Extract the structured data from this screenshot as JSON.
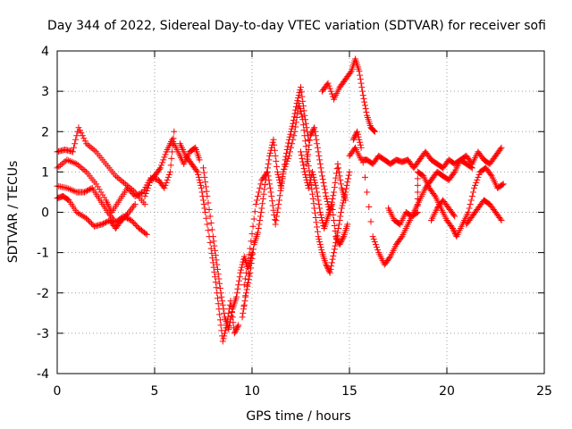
{
  "chart_data": {
    "type": "scatter",
    "title": "Day 344 of 2022, Sidereal Day-to-day VTEC variation (SDTVAR) for receiver sofi",
    "xlabel": "GPS time / hours",
    "ylabel": "SDTVAR / TECUs",
    "xlim": [
      0,
      25
    ],
    "ylim": [
      -4,
      4
    ],
    "xticks": [
      0,
      5,
      10,
      15,
      20,
      25
    ],
    "yticks": [
      -4,
      -3,
      -2,
      -1,
      0,
      1,
      2,
      3,
      4
    ],
    "grid": true,
    "marker": "+",
    "color": "#ff0000",
    "series": [
      {
        "points": [
          [
            0.0,
            1.5
          ],
          [
            0.4,
            1.55
          ],
          [
            0.8,
            1.5
          ],
          [
            1.1,
            2.1
          ],
          [
            1.5,
            1.7
          ],
          [
            2.0,
            1.5
          ],
          [
            2.5,
            1.2
          ],
          [
            3.0,
            0.9
          ],
          [
            3.5,
            0.7
          ],
          [
            4.0,
            0.5
          ],
          [
            4.5,
            0.2
          ],
          [
            0.0,
            0.65
          ],
          [
            0.5,
            0.6
          ],
          [
            1.0,
            0.5
          ],
          [
            1.4,
            0.5
          ],
          [
            1.8,
            0.6
          ],
          [
            2.2,
            0.3
          ],
          [
            2.6,
            0.0
          ],
          [
            3.0,
            -0.25
          ],
          [
            3.4,
            -0.1
          ],
          [
            3.8,
            -0.2
          ],
          [
            4.2,
            -0.4
          ],
          [
            4.6,
            -0.55
          ],
          [
            0.0,
            0.35
          ],
          [
            0.3,
            0.4
          ],
          [
            0.6,
            0.3
          ],
          [
            1.0,
            0.0
          ],
          [
            1.5,
            -0.15
          ],
          [
            1.9,
            -0.35
          ],
          [
            2.3,
            -0.3
          ],
          [
            2.7,
            -0.2
          ],
          [
            3.0,
            -0.4
          ],
          [
            3.3,
            -0.2
          ],
          [
            3.6,
            -0.05
          ],
          [
            4.0,
            0.2
          ],
          [
            0.0,
            1.1
          ],
          [
            0.5,
            1.3
          ],
          [
            1.0,
            1.2
          ],
          [
            1.5,
            1.0
          ],
          [
            2.0,
            0.7
          ],
          [
            2.5,
            0.3
          ],
          [
            2.8,
            0.0
          ],
          [
            3.2,
            0.3
          ],
          [
            3.6,
            0.6
          ],
          [
            4.0,
            0.4
          ],
          [
            4.4,
            0.5
          ],
          [
            4.8,
            0.85
          ],
          [
            5.2,
            0.8
          ],
          [
            5.5,
            0.6
          ],
          [
            5.8,
            1.0
          ],
          [
            6.0,
            2.0
          ],
          [
            4.5,
            0.4
          ],
          [
            4.8,
            0.8
          ],
          [
            5.0,
            0.9
          ],
          [
            5.3,
            1.1
          ],
          [
            5.6,
            1.5
          ],
          [
            5.9,
            1.8
          ],
          [
            6.2,
            1.5
          ],
          [
            6.5,
            1.2
          ],
          [
            6.8,
            1.5
          ],
          [
            7.1,
            1.6
          ],
          [
            7.3,
            1.3
          ],
          [
            6.3,
            1.7
          ],
          [
            6.6,
            1.4
          ],
          [
            6.9,
            1.2
          ],
          [
            7.2,
            1.0
          ],
          [
            7.4,
            0.6
          ],
          [
            7.6,
            0.0
          ],
          [
            7.9,
            -0.9
          ],
          [
            8.1,
            -1.6
          ],
          [
            8.3,
            -2.4
          ],
          [
            8.5,
            -3.2
          ],
          [
            8.7,
            -2.8
          ],
          [
            8.9,
            -2.2
          ],
          [
            9.1,
            -3.0
          ],
          [
            9.3,
            -2.8
          ],
          [
            7.5,
            1.1
          ],
          [
            7.7,
            0.4
          ],
          [
            8.0,
            -0.6
          ],
          [
            8.2,
            -1.3
          ],
          [
            8.4,
            -2.0
          ],
          [
            8.6,
            -2.6
          ],
          [
            8.8,
            -2.9
          ],
          [
            9.0,
            -2.4
          ],
          [
            9.2,
            -2.1
          ],
          [
            9.4,
            -1.5
          ],
          [
            9.6,
            -1.1
          ],
          [
            9.8,
            -1.4
          ],
          [
            10.0,
            -1.0
          ],
          [
            9.5,
            -2.6
          ],
          [
            9.7,
            -2.0
          ],
          [
            9.9,
            -1.5
          ],
          [
            10.1,
            -0.8
          ],
          [
            10.3,
            -0.5
          ],
          [
            10.5,
            0.1
          ],
          [
            10.7,
            0.8
          ],
          [
            10.9,
            1.4
          ],
          [
            11.1,
            1.8
          ],
          [
            11.3,
            1.0
          ],
          [
            11.5,
            0.6
          ],
          [
            11.7,
            1.3
          ],
          [
            11.9,
            1.8
          ],
          [
            12.1,
            2.2
          ],
          [
            12.3,
            2.7
          ],
          [
            12.5,
            3.1
          ],
          [
            12.7,
            2.4
          ],
          [
            12.9,
            1.8
          ],
          [
            9.6,
            -1.8
          ],
          [
            9.9,
            -0.9
          ],
          [
            10.2,
            0.2
          ],
          [
            10.5,
            0.8
          ],
          [
            10.8,
            1.0
          ],
          [
            11.0,
            0.4
          ],
          [
            11.2,
            -0.3
          ],
          [
            11.4,
            0.3
          ],
          [
            11.6,
            1.0
          ],
          [
            11.9,
            1.4
          ],
          [
            12.2,
            2.0
          ],
          [
            12.4,
            2.7
          ],
          [
            12.6,
            2.3
          ],
          [
            12.8,
            1.5
          ],
          [
            13.0,
            0.8
          ],
          [
            13.2,
            0.1
          ],
          [
            13.4,
            -0.6
          ],
          [
            13.6,
            -1.0
          ],
          [
            13.8,
            -1.3
          ],
          [
            14.0,
            -1.5
          ],
          [
            14.2,
            -1.0
          ],
          [
            14.4,
            -0.5
          ],
          [
            14.6,
            0.1
          ],
          [
            14.8,
            0.5
          ],
          [
            15.0,
            1.0
          ],
          [
            12.5,
            1.5
          ],
          [
            12.7,
            1.0
          ],
          [
            12.9,
            0.6
          ],
          [
            13.1,
            1.0
          ],
          [
            13.3,
            0.6
          ],
          [
            13.5,
            0.0
          ],
          [
            13.7,
            -0.4
          ],
          [
            13.9,
            -0.1
          ],
          [
            14.1,
            0.2
          ],
          [
            14.3,
            -0.6
          ],
          [
            14.5,
            -0.8
          ],
          [
            14.7,
            -0.6
          ],
          [
            14.9,
            -0.3
          ],
          [
            12.8,
            1.2
          ],
          [
            13.0,
            1.9
          ],
          [
            13.2,
            2.1
          ],
          [
            13.4,
            1.5
          ],
          [
            13.6,
            0.9
          ],
          [
            13.8,
            0.4
          ],
          [
            14.0,
            0.0
          ],
          [
            14.2,
            0.5
          ],
          [
            14.4,
            1.2
          ],
          [
            14.6,
            0.6
          ],
          [
            14.8,
            0.3
          ],
          [
            13.6,
            3.0
          ],
          [
            13.9,
            3.2
          ],
          [
            14.2,
            2.8
          ],
          [
            14.5,
            3.1
          ],
          [
            14.8,
            3.3
          ],
          [
            15.1,
            3.5
          ],
          [
            15.3,
            3.8
          ],
          [
            15.5,
            3.5
          ],
          [
            15.7,
            2.9
          ],
          [
            15.9,
            2.4
          ],
          [
            16.1,
            2.1
          ],
          [
            16.3,
            2.0
          ],
          [
            15.0,
            1.4
          ],
          [
            15.3,
            1.6
          ],
          [
            15.6,
            1.3
          ],
          [
            15.9,
            1.3
          ],
          [
            16.2,
            1.2
          ],
          [
            16.5,
            1.4
          ],
          [
            16.8,
            1.3
          ],
          [
            17.1,
            1.2
          ],
          [
            17.4,
            1.3
          ],
          [
            17.7,
            1.25
          ],
          [
            18.0,
            1.3
          ],
          [
            18.3,
            1.1
          ],
          [
            18.6,
            1.3
          ],
          [
            18.9,
            1.5
          ],
          [
            19.2,
            1.3
          ],
          [
            19.5,
            1.2
          ],
          [
            19.8,
            1.1
          ],
          [
            20.1,
            1.3
          ],
          [
            20.4,
            1.2
          ],
          [
            20.7,
            1.3
          ],
          [
            21.0,
            1.4
          ],
          [
            21.3,
            1.2
          ],
          [
            21.6,
            1.5
          ],
          [
            21.9,
            1.3
          ],
          [
            22.2,
            1.2
          ],
          [
            22.5,
            1.4
          ],
          [
            22.8,
            1.6
          ],
          [
            15.2,
            1.8
          ],
          [
            15.4,
            2.0
          ],
          [
            15.6,
            1.6
          ],
          [
            16.2,
            -0.6
          ],
          [
            16.5,
            -1.0
          ],
          [
            16.8,
            -1.3
          ],
          [
            17.1,
            -1.1
          ],
          [
            17.4,
            -0.8
          ],
          [
            17.7,
            -0.6
          ],
          [
            18.0,
            -0.3
          ],
          [
            18.3,
            0.0
          ],
          [
            18.6,
            0.3
          ],
          [
            18.9,
            0.6
          ],
          [
            19.2,
            0.8
          ],
          [
            19.5,
            1.0
          ],
          [
            19.8,
            0.9
          ],
          [
            20.1,
            0.8
          ],
          [
            20.4,
            1.0
          ],
          [
            20.7,
            1.3
          ],
          [
            21.0,
            1.2
          ],
          [
            21.3,
            1.1
          ],
          [
            17.0,
            0.1
          ],
          [
            17.3,
            -0.2
          ],
          [
            17.6,
            -0.3
          ],
          [
            17.9,
            0.0
          ],
          [
            18.2,
            -0.1
          ],
          [
            18.5,
            0.0
          ],
          [
            18.5,
            1.0
          ],
          [
            18.8,
            0.9
          ],
          [
            19.1,
            0.6
          ],
          [
            19.4,
            0.4
          ],
          [
            19.7,
            0.1
          ],
          [
            20.0,
            -0.2
          ],
          [
            20.3,
            -0.4
          ],
          [
            20.5,
            -0.6
          ],
          [
            20.8,
            -0.3
          ],
          [
            21.1,
            0.0
          ],
          [
            21.4,
            0.6
          ],
          [
            21.7,
            1.0
          ],
          [
            22.0,
            1.1
          ],
          [
            22.3,
            0.9
          ],
          [
            22.6,
            0.6
          ],
          [
            22.9,
            0.7
          ],
          [
            19.2,
            -0.2
          ],
          [
            19.5,
            0.1
          ],
          [
            19.8,
            0.3
          ],
          [
            20.1,
            0.1
          ],
          [
            20.4,
            -0.1
          ],
          [
            21.0,
            -0.3
          ],
          [
            21.3,
            -0.1
          ],
          [
            21.6,
            0.1
          ],
          [
            21.9,
            0.3
          ],
          [
            22.2,
            0.2
          ],
          [
            22.5,
            0.0
          ],
          [
            22.8,
            -0.2
          ]
        ]
      }
    ]
  }
}
